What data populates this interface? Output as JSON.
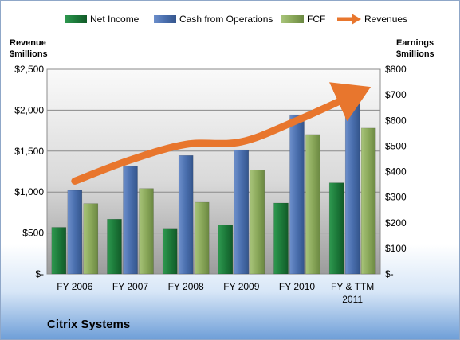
{
  "chart_data": {
    "type": "bar",
    "title": "Citrix Systems",
    "categories": [
      "FY 2006",
      "FY 2007",
      "FY 2008",
      "FY 2009",
      "FY 2010",
      "FY & TTM 2011"
    ],
    "left_axis": {
      "title_line1": "Revenue",
      "title_line2": "$millions",
      "ylim": [
        0,
        2500
      ],
      "ticks": [
        0,
        500,
        1000,
        1500,
        2000,
        2500
      ],
      "tick_labels": [
        "$-",
        "$500",
        "$1,000",
        "$1,500",
        "$2,000",
        "$2,500"
      ]
    },
    "right_axis": {
      "title_line1": "Earnings",
      "title_line2": "$millions",
      "ylim": [
        0,
        800
      ],
      "ticks": [
        0,
        100,
        200,
        300,
        400,
        500,
        600,
        700,
        800
      ],
      "tick_labels": [
        "$-",
        "$100",
        "$200",
        "$300",
        "$400",
        "$500",
        "$600",
        "$700",
        "$800"
      ]
    },
    "series": [
      {
        "name": "Net Income",
        "type": "bar",
        "axis": "right",
        "color": "#1f7a3c",
        "values": [
          182,
          214,
          178,
          191,
          277,
          356
        ]
      },
      {
        "name": "Cash from Operations",
        "type": "bar",
        "axis": "right",
        "color": "#4a6fae",
        "values": [
          327,
          421,
          463,
          485,
          622,
          682
        ]
      },
      {
        "name": "FCF",
        "type": "bar",
        "axis": "right",
        "color": "#8aa85a",
        "values": [
          275,
          334,
          280,
          406,
          545,
          570
        ]
      },
      {
        "name": "Revenues",
        "type": "line",
        "axis": "left",
        "color": "#e8762d",
        "values": [
          1134,
          1392,
          1583,
          1614,
          1875,
          2183
        ]
      }
    ],
    "grid": true,
    "legend_position": "top"
  }
}
